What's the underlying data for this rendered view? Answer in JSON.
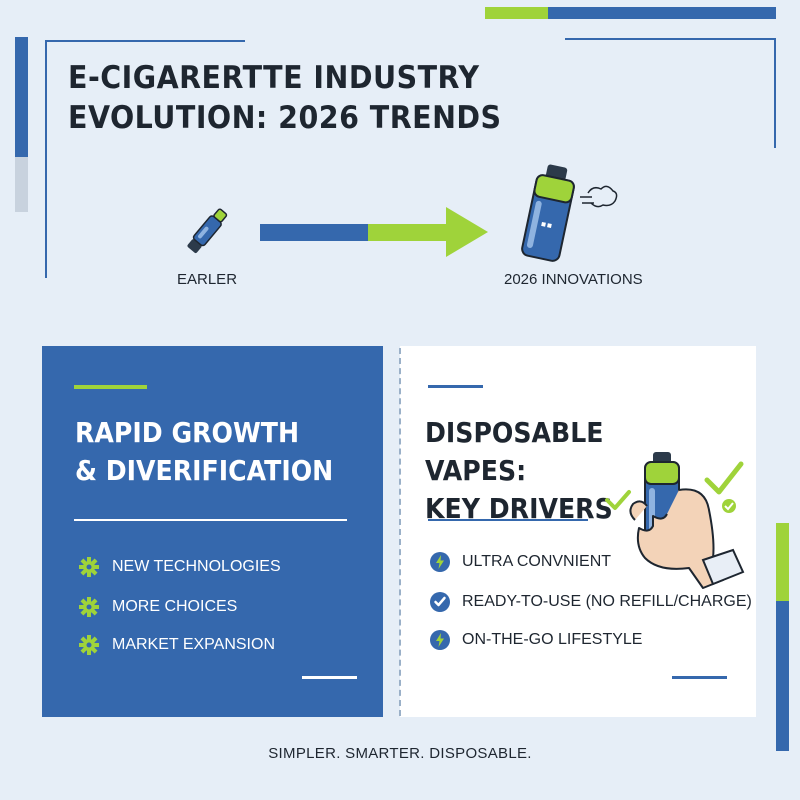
{
  "title": {
    "line1": "E-CIGARERTTE INDUSTRY",
    "line2": "EVOLUTION: 2026 TRENDS"
  },
  "timeline": {
    "earlier_label": "EARLER",
    "innovations_label": "2026 INNOVATIONS"
  },
  "left_panel": {
    "heading_line1": "RAPID GROWTH",
    "heading_line2": "& DIVERIFICATION",
    "items": [
      {
        "label": "NEW TECHNOLOGIES",
        "icon": "gear-icon"
      },
      {
        "label": "MORE CHOICES",
        "icon": "gear-icon"
      },
      {
        "label": "MARKET EXPANSION",
        "icon": "gear-icon"
      }
    ]
  },
  "right_panel": {
    "heading_line1": "DISPOSABLE VAPES:",
    "heading_line2": "KEY DRIVERS",
    "items": [
      {
        "label": "ULTRA CONVNIENT",
        "icon": "lightning-icon"
      },
      {
        "label": "READY-TO-USE (NO REFILL/CHARGE)",
        "icon": "checkmark-icon"
      },
      {
        "label": "ON-THE-GO LIFESTYLE",
        "icon": "lightning-icon"
      }
    ]
  },
  "footer": {
    "tagline": "SIMPLER. SMARTER. DISPOSABLE."
  },
  "colors": {
    "blue": "#3568ad",
    "green": "#9fd33a",
    "dark": "#1e2630",
    "background": "#e6eef7"
  }
}
